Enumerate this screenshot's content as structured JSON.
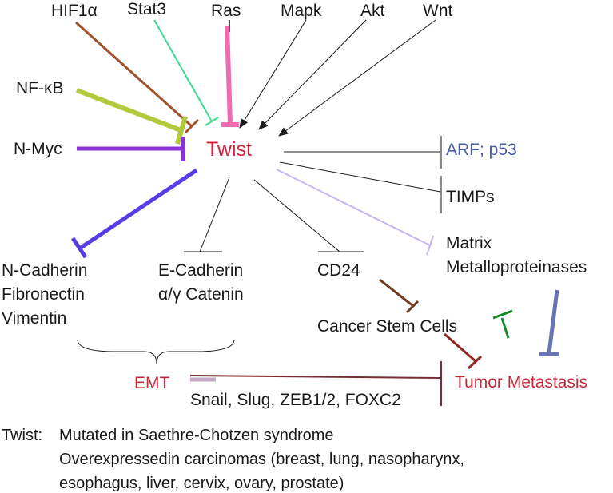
{
  "colors": {
    "twist": "#d0243c",
    "arf_p53": "#4a5ca8",
    "red_label": "#c8283c",
    "text": "#1a1a1a",
    "hif": "#a0522d",
    "stat3": "#3cdc8c",
    "ras": "#f06ab4",
    "nfkb": "#b4c83c",
    "nmyc": "#8c32dc",
    "ncad": "#5a3ce6",
    "matrix": "#c8b4f0",
    "cd24": "#6e3c1e",
    "stem": "#8c2820",
    "green_t": "#148c2c",
    "blue_t": "#6a74b4",
    "emt_line": "#7a2c32",
    "emt_bar": "#c8a8c8"
  },
  "nodes": {
    "hif1a": "HIF1α",
    "stat3": "Stat3",
    "ras": "Ras",
    "mapk": "Mapk",
    "akt": "Akt",
    "wnt": "Wnt",
    "nfkb": "NF-κB",
    "nmyc": "N-Myc",
    "twist": "Twist",
    "arf_p53": "ARF; p53",
    "timps": "TIMPs",
    "matrix_1": "Matrix",
    "matrix_2": "Metalloproteinases",
    "ncad_1": "N-Cadherin",
    "ncad_2": "Fibronectin",
    "ncad_3": "Vimentin",
    "ecad_1": "E-Cadherin",
    "ecad_2": "α/γ Catenin",
    "cd24": "CD24",
    "cancer_stem_cells": "Cancer Stem Cells",
    "emt": "EMT",
    "tumor_metastasis": "Tumor Metastasis",
    "snail": "Snail, Slug, ZEB1/2, FOXC2"
  },
  "footnote": {
    "label": "Twist:",
    "line1": "Mutated in Saethre-Chotzen syndrome",
    "line2": "Overexpressedin carcinomas (breast, lung, nasopharynx,",
    "line3": "esophagus, liver, cervix, ovary, prostate)"
  }
}
